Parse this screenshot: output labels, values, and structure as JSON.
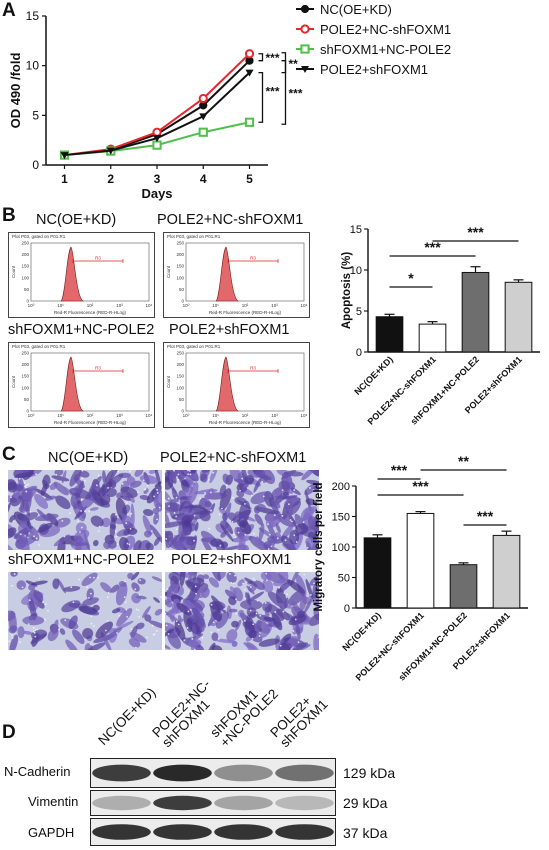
{
  "panels": {
    "a": {
      "letter": "A"
    },
    "b": {
      "letter": "B"
    },
    "c": {
      "letter": "C"
    },
    "d": {
      "letter": "D"
    }
  },
  "chart_data": [
    {
      "type": "line",
      "panel": "A",
      "xlabel": "Days",
      "ylabel": "OD 490 /fold",
      "x": [
        1,
        2,
        3,
        4,
        5
      ],
      "xlim": [
        0.6,
        5.4
      ],
      "ylim": [
        0,
        15
      ],
      "yticks": [
        0,
        5,
        10,
        15
      ],
      "series": [
        {
          "name": "NC(OE+KD)",
          "values": [
            1.0,
            1.5,
            3.1,
            6.0,
            10.5
          ],
          "color": "#111111",
          "marker": "circle-filled"
        },
        {
          "name": "POLE2+NC-shFOXM1",
          "values": [
            1.0,
            1.6,
            3.3,
            6.7,
            11.2
          ],
          "color": "#e8262b",
          "marker": "circle-open"
        },
        {
          "name": "shFOXM1+NC-POLE2",
          "values": [
            1.0,
            1.4,
            2.0,
            3.3,
            4.3
          ],
          "color": "#4fbf4a",
          "marker": "square-open"
        },
        {
          "name": "POLE2+shFOXM1",
          "values": [
            1.0,
            1.45,
            2.7,
            4.9,
            9.3
          ],
          "color": "#111111",
          "marker": "triangle-down"
        }
      ],
      "significance": [
        "***",
        "**",
        "***",
        "***"
      ],
      "legend": "top-right"
    },
    {
      "type": "bar",
      "panel": "B",
      "ylabel": "Apoptosis (%)",
      "categories": [
        "NC(OE+KD)",
        "POLE2+NC-shFOXM1",
        "shFOXM1+NC-POLE2",
        "POLE2+shFOXM1"
      ],
      "values": [
        4.3,
        3.4,
        9.7,
        8.5
      ],
      "errors": [
        0.3,
        0.3,
        0.7,
        0.3
      ],
      "colors": [
        "#111111",
        "#ffffff",
        "#6e6e6e",
        "#cfcfcf"
      ],
      "ylim": [
        0,
        15
      ],
      "yticks": [
        0,
        5,
        10,
        15
      ],
      "significance": [
        {
          "from": 0,
          "to": 1,
          "label": "*"
        },
        {
          "from": 0,
          "to": 2,
          "label": "***"
        },
        {
          "from": 1,
          "to": 3,
          "label": "***"
        }
      ]
    },
    {
      "type": "bar",
      "panel": "C",
      "ylabel": "Migratory cells per field",
      "categories": [
        "NC(OE+KD)",
        "POLE2+NC-shFOXM1",
        "shFOXM1+NC-POLE2",
        "POLE2+shFOXM1"
      ],
      "values": [
        115,
        155,
        71,
        119
      ],
      "errors": [
        5,
        3,
        3,
        7
      ],
      "colors": [
        "#111111",
        "#ffffff",
        "#6e6e6e",
        "#cfcfcf"
      ],
      "ylim": [
        0,
        200
      ],
      "yticks": [
        0,
        50,
        100,
        150,
        200
      ],
      "significance": [
        {
          "from": 0,
          "to": 1,
          "label": "***"
        },
        {
          "from": 0,
          "to": 2,
          "label": "***"
        },
        {
          "from": 1,
          "to": 3,
          "label": "**"
        },
        {
          "from": 2,
          "to": 3,
          "label": "***"
        }
      ]
    }
  ],
  "flow": {
    "conditions": [
      "NC(OE+KD)",
      "POLE2+NC-shFOXM1",
      "shFOXM1+NC-POLE2",
      "POLE2+shFOXM1"
    ],
    "plot_header": "Plot P03, gated on P01.R1",
    "x_axis_label": "Red-R Fluorescence (RED-R-HLog)",
    "y_axis_label": "Count",
    "region_label": "R3",
    "y_ticks": [
      "0",
      "50",
      "100",
      "150",
      "200",
      "250"
    ],
    "x_ticks": [
      "10⁰",
      "10¹",
      "10²",
      "10³",
      "10⁴"
    ]
  },
  "transwell": {
    "conditions": [
      "NC(OE+KD)",
      "POLE2+NC-shFOXM1",
      "shFOXM1+NC-POLE2",
      "POLE2+shFOXM1"
    ]
  },
  "western": {
    "lanes": [
      "NC(OE+KD)",
      "POLE2+NC-shFOXM1",
      "shFOXM1+NC-POLE2",
      "POLE2+shFOXM1"
    ],
    "lane_labels_display": [
      "NC(OE+KD)",
      "POLE2+NC-\nshFOXM1",
      "shFOXM1\n+NC-POLE2",
      "POLE2+\nshFOXM1"
    ],
    "proteins": [
      {
        "name": "N-Cadherin",
        "size": "129 kDa",
        "intensity": [
          0.85,
          0.95,
          0.45,
          0.6
        ]
      },
      {
        "name": "Vimentin",
        "size": "29 kDa",
        "intensity": [
          0.3,
          0.85,
          0.35,
          0.25
        ]
      },
      {
        "name": "GAPDH",
        "size": "37 kDa",
        "intensity": [
          0.9,
          0.9,
          0.9,
          0.9
        ]
      }
    ]
  }
}
